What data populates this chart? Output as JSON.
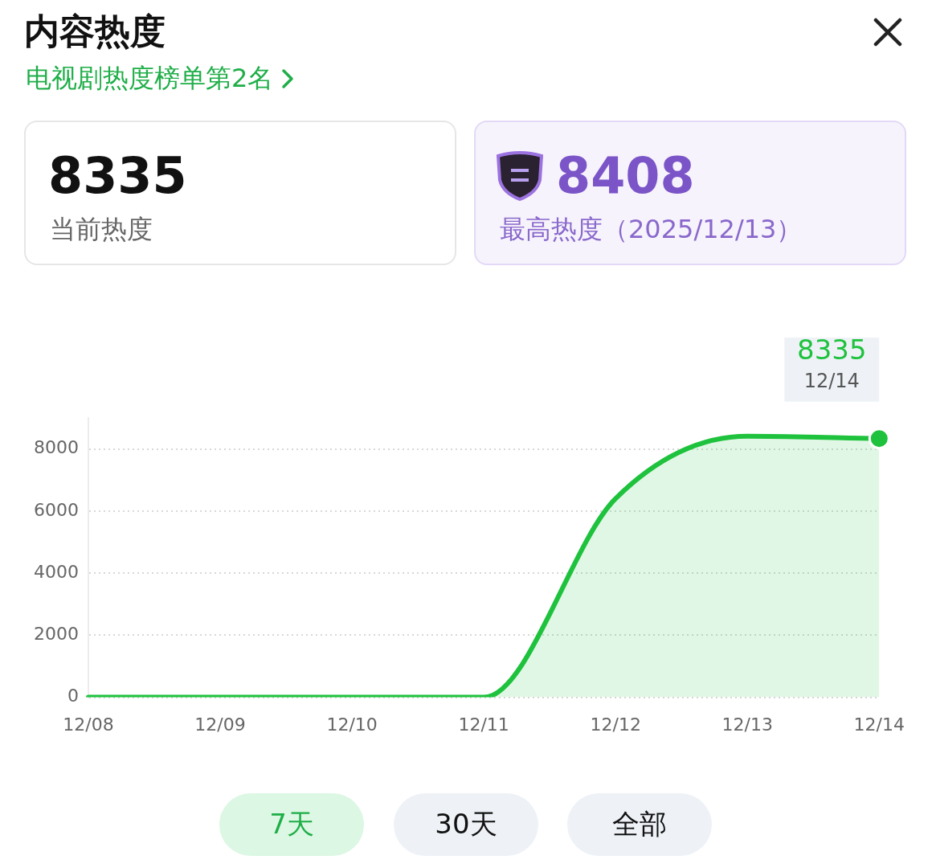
{
  "chart_data": {
    "type": "area",
    "title": "内容热度",
    "subtitle": "电视剧热度榜单第2名",
    "categories": [
      "12/08",
      "12/09",
      "12/10",
      "12/11",
      "12/12",
      "12/13",
      "12/14"
    ],
    "values": [
      0,
      0,
      0,
      0,
      6400,
      8408,
      8335
    ],
    "color": "#1ec23d",
    "ylim": [
      0,
      9000
    ],
    "yticks": [
      0,
      2000,
      4000,
      6000,
      8000
    ],
    "grid": "y",
    "marker": "none",
    "legend": false,
    "annotations": [
      "8335",
      "当前热度",
      "8408",
      "最高热度（2025/12/13）",
      "7天",
      "30天",
      "全部",
      {
        "text": "8335",
        "x": "12/14",
        "y": 8335
      },
      {
        "text": "12/14",
        "x": "12/14",
        "y": 8335
      }
    ]
  }
}
